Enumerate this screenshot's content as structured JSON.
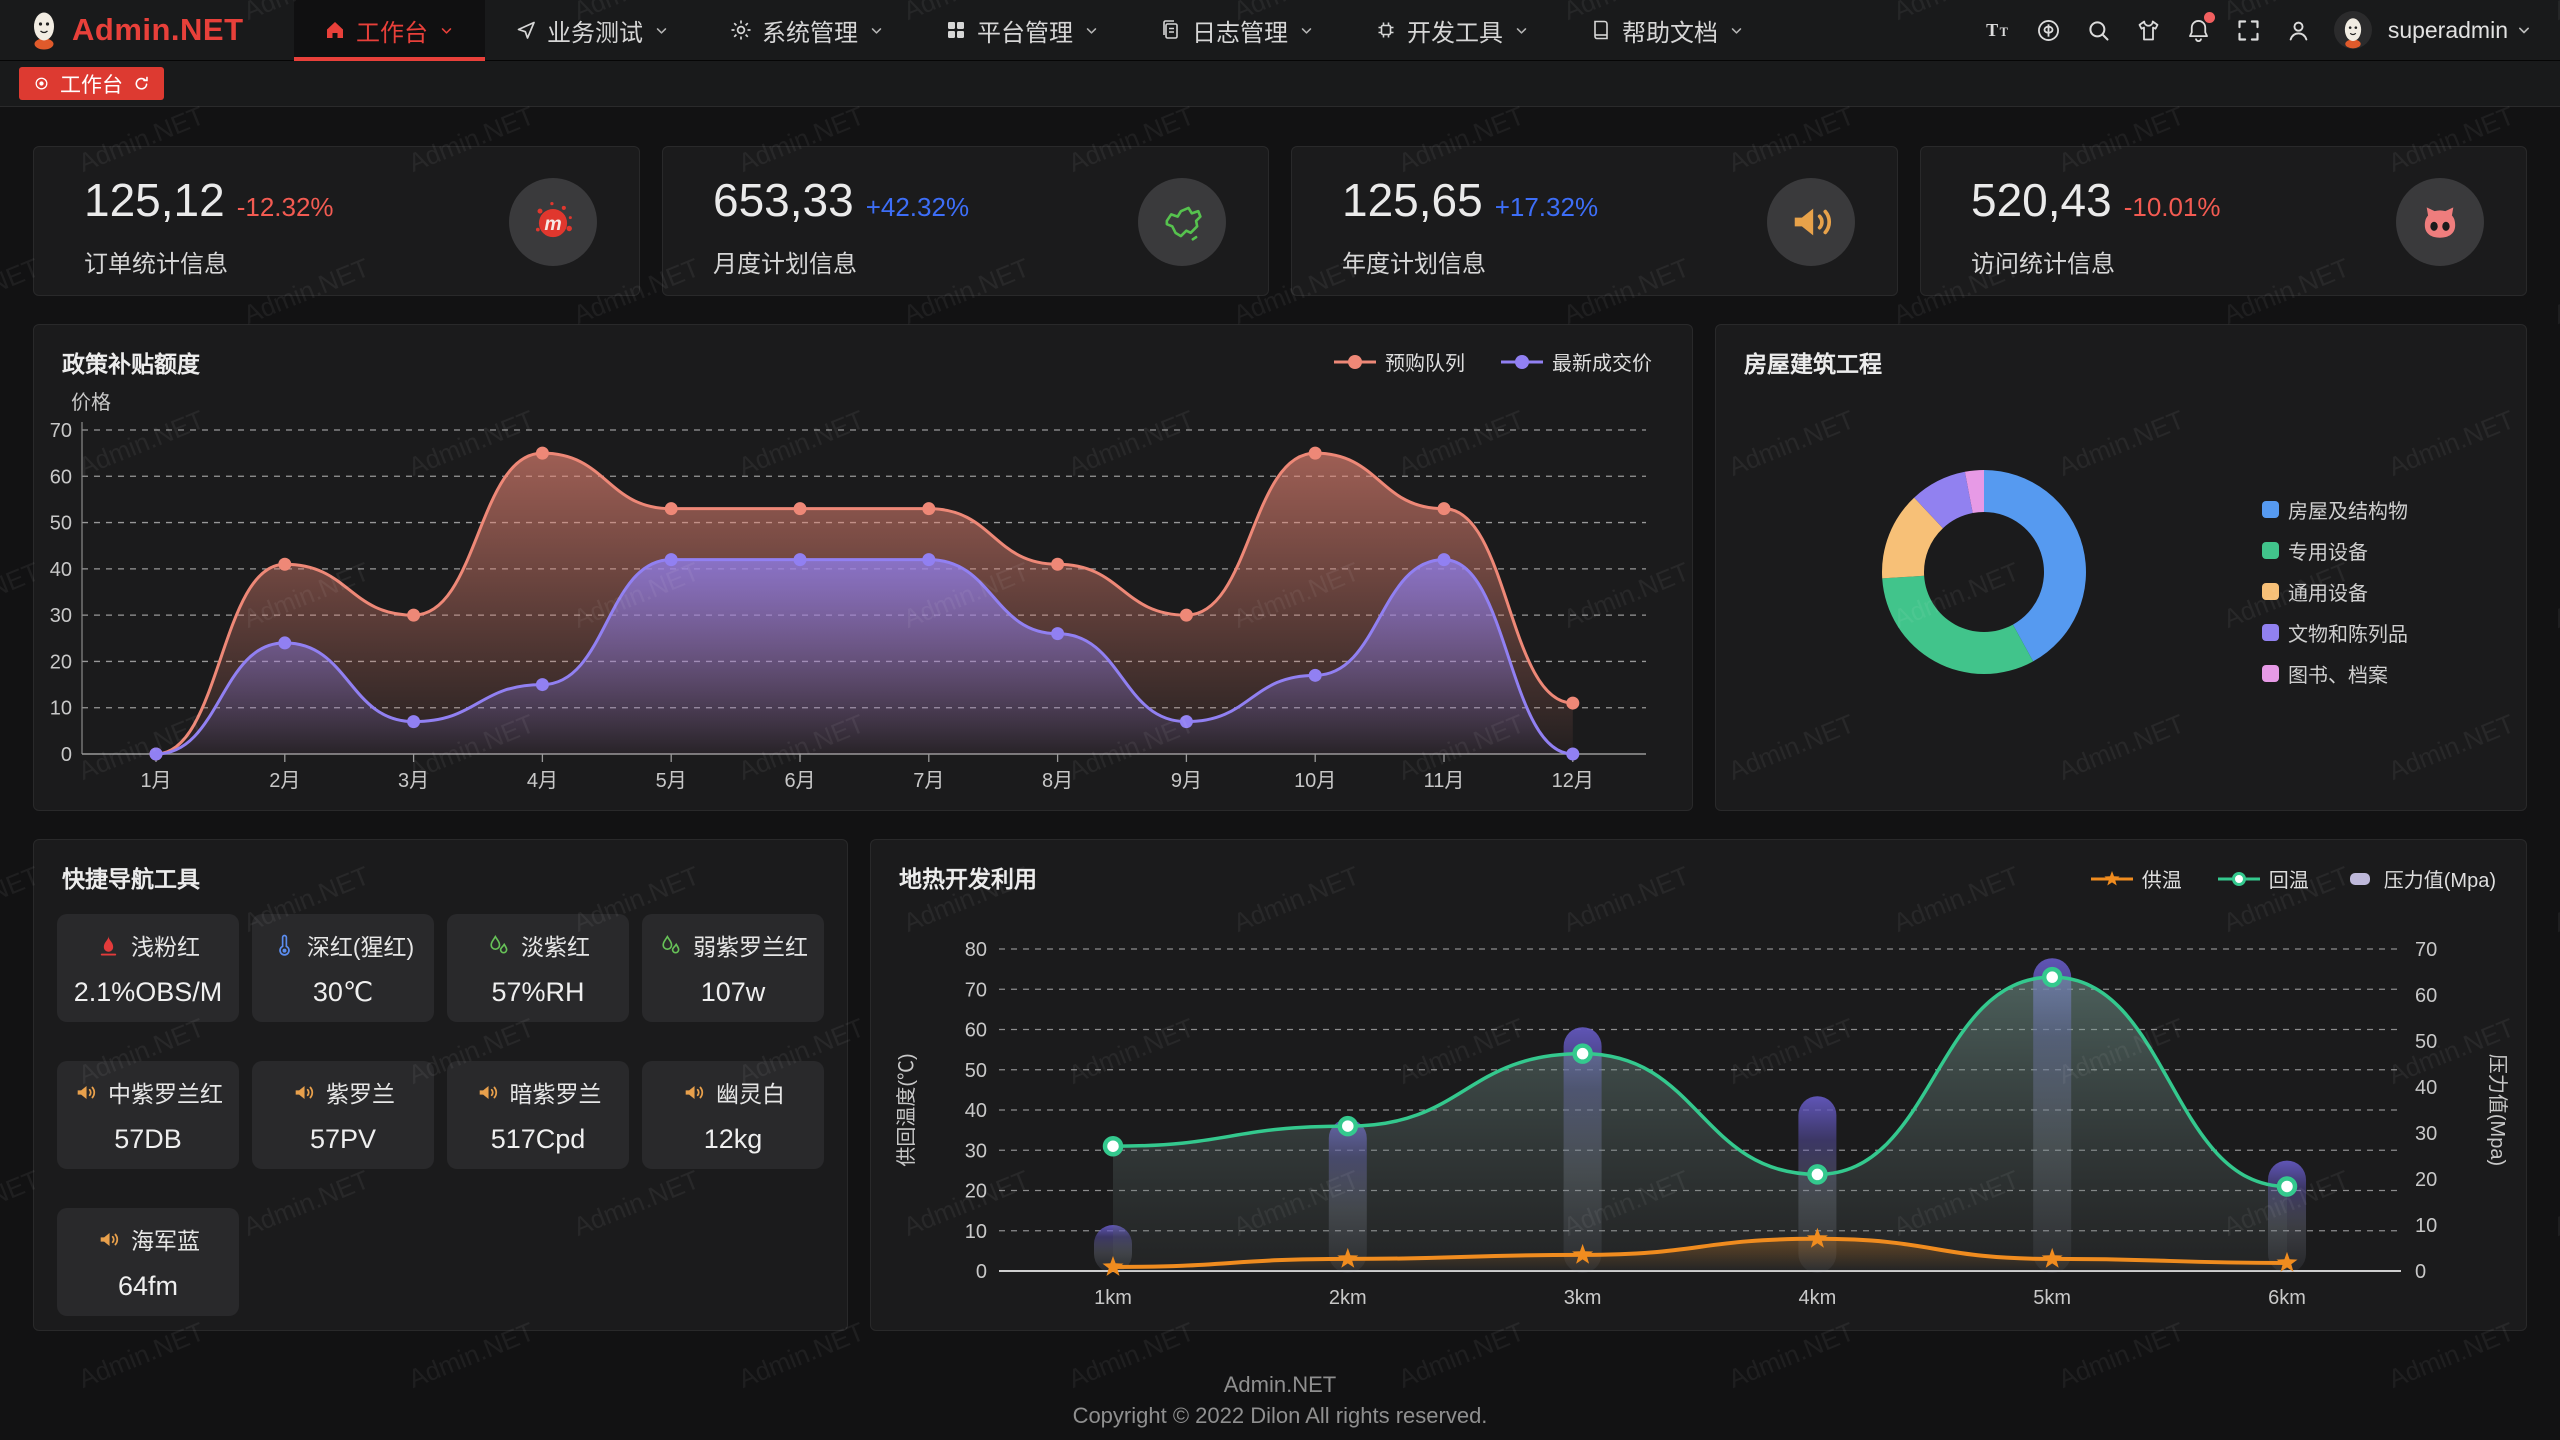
{
  "navbar": {
    "brand": "Admin.NET",
    "menu": [
      {
        "label": "工作台",
        "icon": "home-icon",
        "active": true
      },
      {
        "label": "业务测试",
        "icon": "send-icon",
        "active": false
      },
      {
        "label": "系统管理",
        "icon": "gear-icon",
        "active": false
      },
      {
        "label": "平台管理",
        "icon": "grid-icon",
        "active": false
      },
      {
        "label": "日志管理",
        "icon": "log-icon",
        "active": false
      },
      {
        "label": "开发工具",
        "icon": "chip-icon",
        "active": false
      },
      {
        "label": "帮助文档",
        "icon": "book-icon",
        "active": false
      }
    ],
    "tools": [
      "font-size-icon",
      "language-icon",
      "search-icon",
      "theme-icon",
      "bell-icon",
      "fullscreen-icon",
      "user-icon"
    ],
    "user": {
      "name": "superadmin"
    }
  },
  "tabbar": {
    "active_tab": "工作台"
  },
  "stat_cards": [
    {
      "value": "125,12",
      "change": "-12.32%",
      "direction": "down",
      "label": "订单统计信息",
      "icon": "meetup-icon",
      "icon_color": "#e0372e"
    },
    {
      "value": "653,33",
      "change": "+42.32%",
      "direction": "up",
      "label": "月度计划信息",
      "icon": "china-map-icon",
      "icon_color": "#56c24e"
    },
    {
      "value": "125,65",
      "change": "+17.32%",
      "direction": "up",
      "label": "年度计划信息",
      "icon": "speaker-icon",
      "icon_color": "#e8a24a"
    },
    {
      "value": "520,43",
      "change": "-10.01%",
      "direction": "down",
      "label": "访问统计信息",
      "icon": "cat-icon",
      "icon_color": "#ef7d7d"
    }
  ],
  "chart_data": [
    {
      "type": "area",
      "title": "政策补贴额度",
      "ylabel": "价格",
      "ylim": [
        0,
        70
      ],
      "yticks": [
        0,
        10,
        20,
        30,
        40,
        50,
        60,
        70
      ],
      "grid": "dashed",
      "legend_position": "top-right",
      "categories": [
        "1月",
        "2月",
        "3月",
        "4月",
        "5月",
        "6月",
        "7月",
        "8月",
        "9月",
        "10月",
        "11月",
        "12月"
      ],
      "series": [
        {
          "name": "预购队列",
          "color": "#ee8877",
          "values": [
            0,
            41,
            30,
            65,
            53,
            53,
            53,
            41,
            30,
            65,
            53,
            11
          ]
        },
        {
          "name": "最新成交价",
          "color": "#9180f2",
          "values": [
            0,
            24,
            7,
            15,
            42,
            42,
            42,
            26,
            7,
            17,
            42,
            0
          ]
        }
      ]
    },
    {
      "type": "pie",
      "title": "房屋建筑工程",
      "donut": true,
      "legend_position": "right",
      "slices": [
        {
          "name": "房屋及结构物",
          "value": 42,
          "color": "#569af0"
        },
        {
          "name": "专用设备",
          "value": 32,
          "color": "#41c48b"
        },
        {
          "name": "通用设备",
          "value": 14,
          "color": "#f7c077"
        },
        {
          "name": "文物和陈列品",
          "value": 9,
          "color": "#9181f0"
        },
        {
          "name": "图书、档案",
          "value": 3,
          "color": "#e79ae6"
        }
      ]
    },
    {
      "type": "line",
      "title": "地热开发利用",
      "categories": [
        "1km",
        "2km",
        "3km",
        "4km",
        "5km",
        "6km"
      ],
      "ylabel_left": "供回温度(℃)",
      "ylim_left": [
        0,
        80
      ],
      "ylabel_right": "压力值(Mpa)",
      "ylim_right": [
        0,
        70
      ],
      "grid": "dashed",
      "legend_position": "top-right",
      "series": [
        {
          "name": "供温",
          "kind": "line",
          "axis": "left",
          "marker": "star",
          "color": "#f08c1f",
          "values": [
            1,
            3,
            4,
            8,
            3,
            2
          ]
        },
        {
          "name": "回温",
          "kind": "line",
          "axis": "left",
          "marker": "ring",
          "color": "#34c98e",
          "values": [
            31,
            36,
            54,
            24,
            73,
            21
          ]
        },
        {
          "name": "压力值(Mpa)",
          "kind": "bar",
          "axis": "right",
          "color": "#6358be",
          "swatch": "#beb8da",
          "values": [
            10,
            33,
            53,
            38,
            68,
            24
          ]
        }
      ]
    }
  ],
  "quick_nav": {
    "title": "快捷导航工具",
    "items": [
      {
        "icon": "flame-icon",
        "icon_color": "#e23b3b",
        "label": "浅粉红",
        "value": "2.1%OBS/M"
      },
      {
        "icon": "thermometer-icon",
        "icon_color": "#5b8df0",
        "label": "深红(猩红)",
        "value": "30℃"
      },
      {
        "icon": "drops-icon",
        "icon_color": "#67c258",
        "label": "淡紫红",
        "value": "57%RH"
      },
      {
        "icon": "drops-icon",
        "icon_color": "#67c258",
        "label": "弱紫罗兰红",
        "value": "107w"
      },
      {
        "icon": "speaker-icon",
        "icon_color": "#e8a04c",
        "label": "中紫罗兰红",
        "value": "57DB"
      },
      {
        "icon": "speaker-icon",
        "icon_color": "#e8a04c",
        "label": "紫罗兰",
        "value": "57PV"
      },
      {
        "icon": "speaker-icon",
        "icon_color": "#e8a04c",
        "label": "暗紫罗兰",
        "value": "517Cpd"
      },
      {
        "icon": "speaker-icon",
        "icon_color": "#e8a04c",
        "label": "幽灵白",
        "value": "12kg"
      },
      {
        "icon": "speaker-icon",
        "icon_color": "#e8a04c",
        "label": "海军蓝",
        "value": "64fm"
      }
    ]
  },
  "footer": {
    "line1": "Admin.NET",
    "line2": "Copyright © 2022 Dilon All rights reserved."
  },
  "watermark": {
    "text": "Admin.NET"
  },
  "colors": {
    "accent": "#e8403a",
    "up": "#3d6ef7",
    "down": "#f35b52"
  }
}
